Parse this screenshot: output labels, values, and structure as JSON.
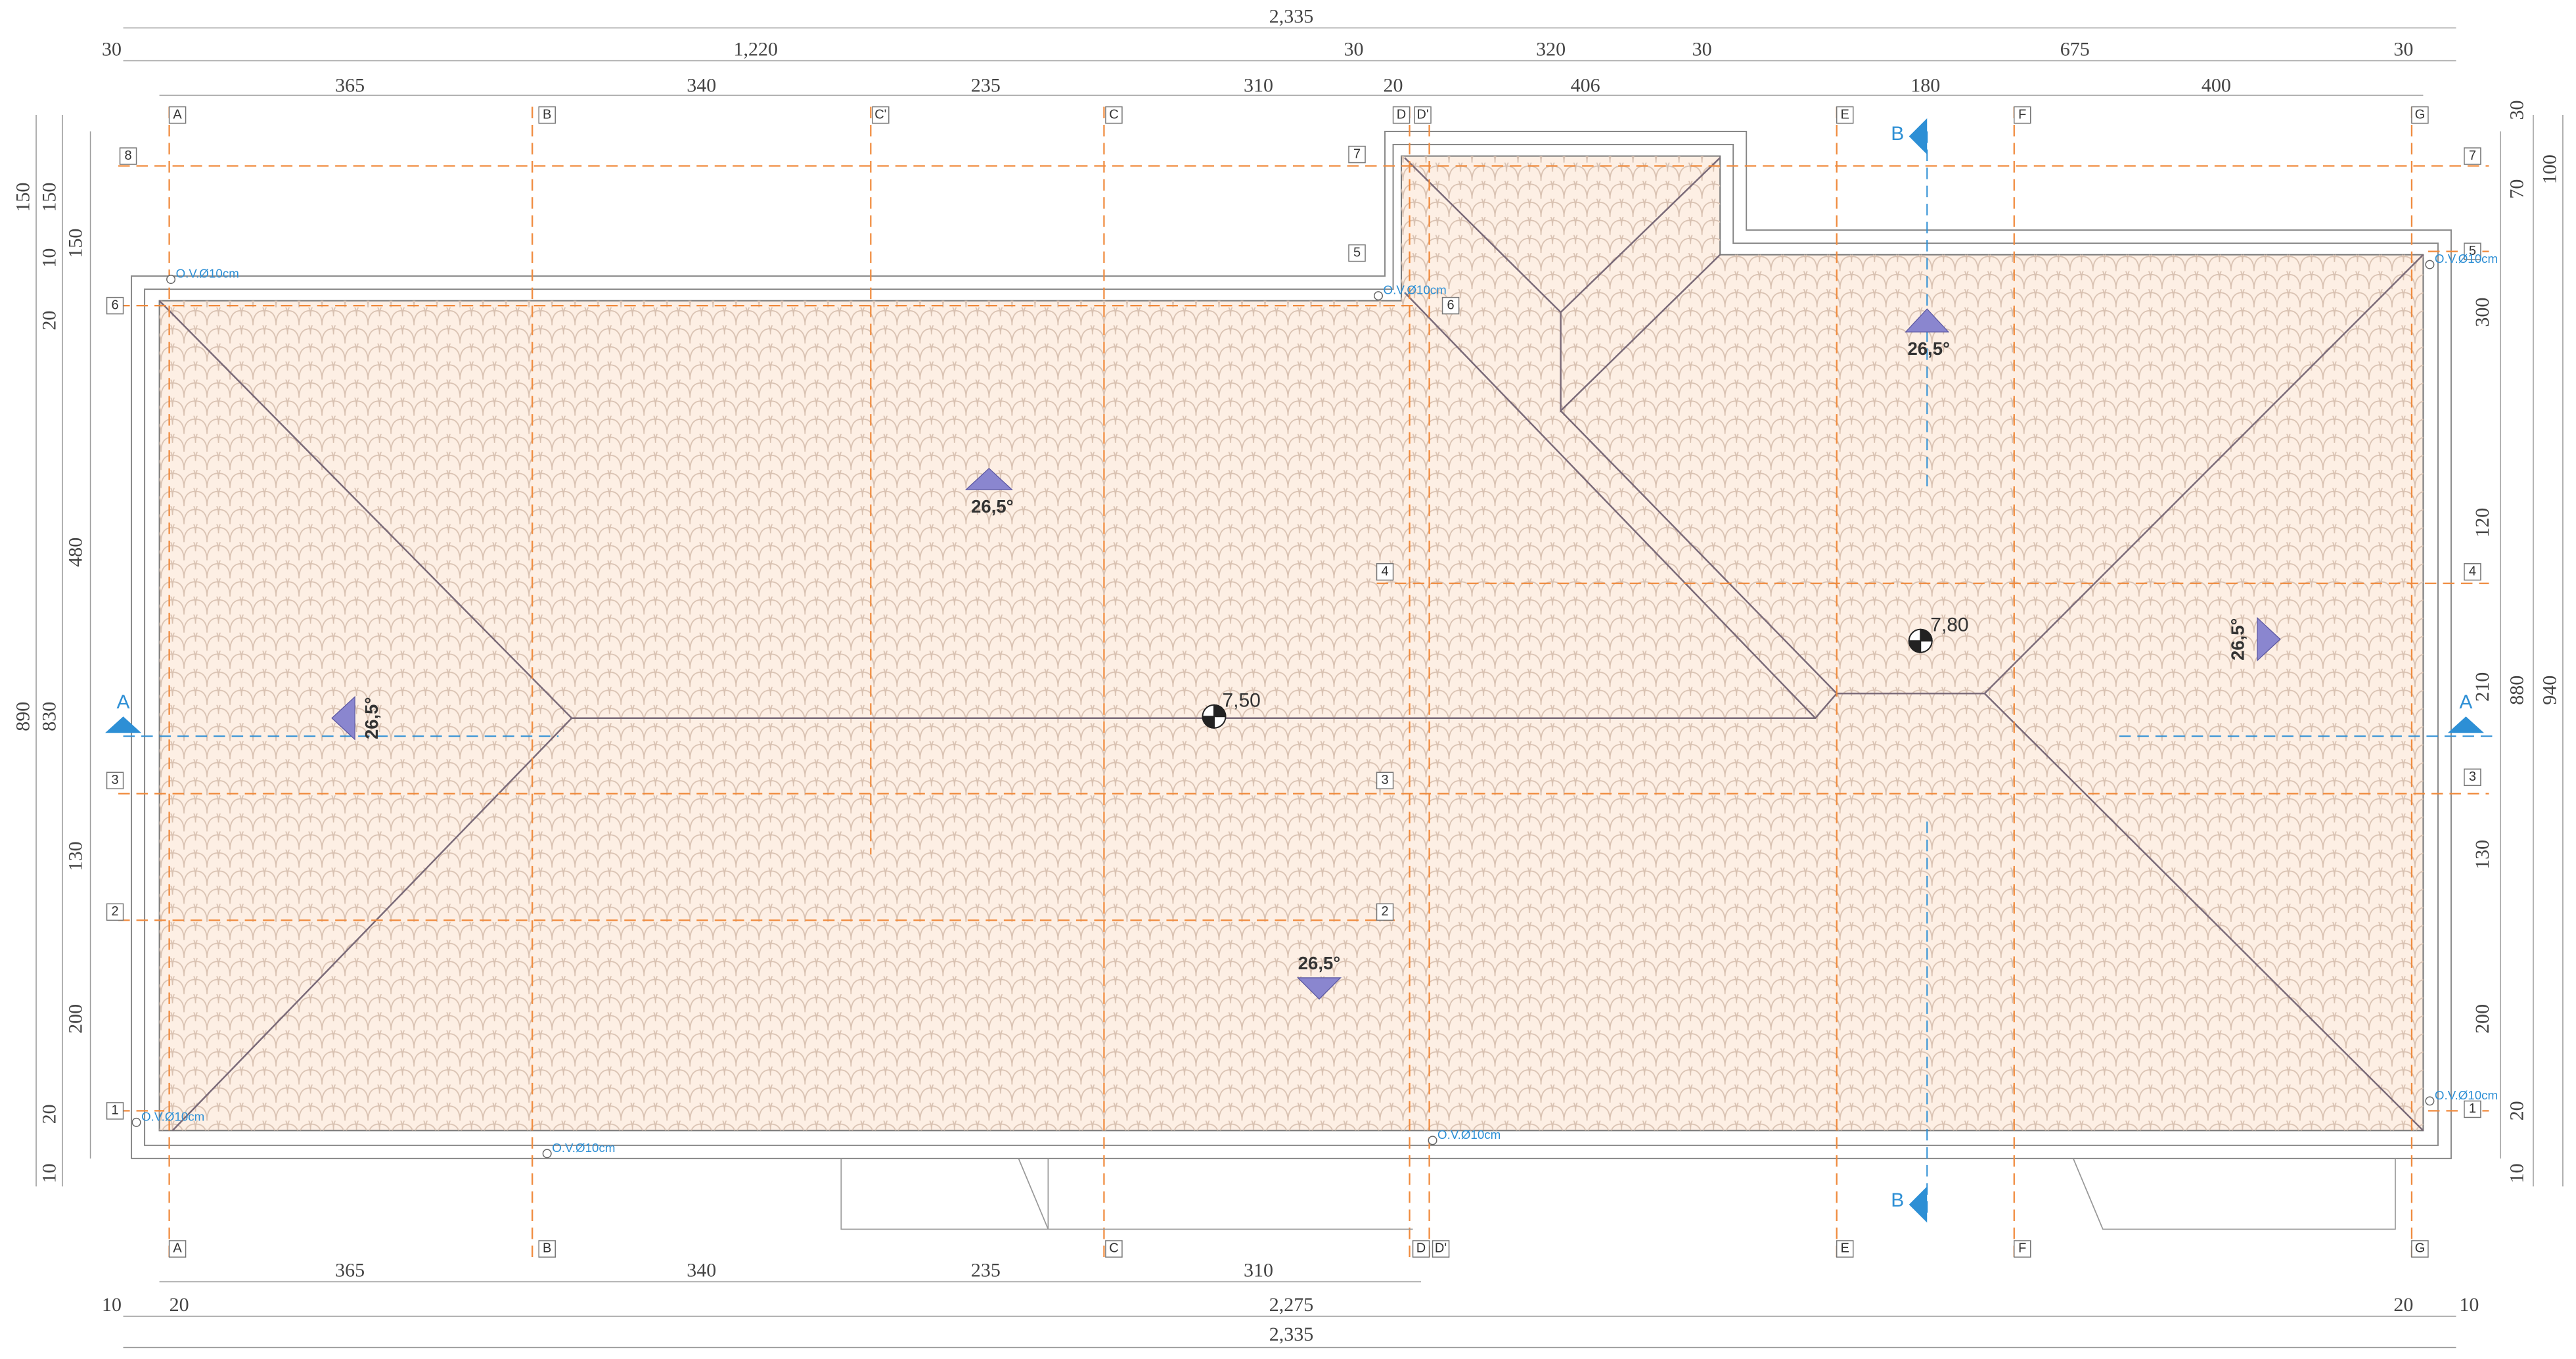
{
  "dimensions": {
    "top": [
      "2,335",
      "30",
      "1,220",
      "30",
      "320",
      "30",
      "675",
      "30",
      "365",
      "340",
      "235",
      "310",
      "20",
      "406",
      "180",
      "400"
    ],
    "bottom": [
      "365",
      "340",
      "235",
      "310",
      "10",
      "20",
      "2,275",
      "20",
      "10",
      "2,335"
    ],
    "left": [
      "150",
      "150",
      "10",
      "150",
      "20",
      "480",
      "890",
      "830",
      "130",
      "200",
      "20",
      "10"
    ],
    "right": [
      "30",
      "100",
      "70",
      "300",
      "120",
      "210",
      "880",
      "940",
      "130",
      "200",
      "20",
      "10"
    ]
  },
  "grid": {
    "top": [
      "A",
      "B",
      "C'",
      "C",
      "D",
      "D'",
      "E",
      "F",
      "G"
    ],
    "bottom": [
      "A",
      "B",
      "C",
      "D",
      "D'",
      "E",
      "F",
      "G"
    ],
    "rows_left": [
      "8",
      "6",
      "3",
      "2",
      "1"
    ],
    "rows_middle": [
      "7",
      "5",
      "6",
      "4",
      "3",
      "2"
    ],
    "rows_right": [
      "7",
      "5",
      "4",
      "3",
      "1"
    ]
  },
  "slopes": [
    "26,5°",
    "26,5°",
    "26,5°",
    "26,5°",
    "26,5°"
  ],
  "elevations": [
    "7,50",
    "7,80"
  ],
  "drains": [
    "O.V.Ø10cm",
    "O.V.Ø10cm",
    "O.V.Ø10cm",
    "O.V.Ø10cm",
    "O.V.Ø10cm",
    "O.V.Ø10cm",
    "O.V.Ø10cm"
  ],
  "sections": [
    "A",
    "A",
    "B",
    "B"
  ]
}
